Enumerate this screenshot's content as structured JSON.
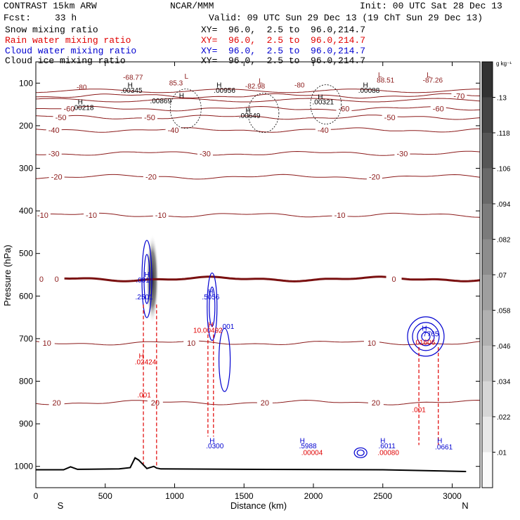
{
  "header": {
    "model": "CONTRAST 15km ARW",
    "org": "NCAR/MMM",
    "init": "Init: 00 UTC Sat 28 Dec 13",
    "fcst_label": "Fcst:",
    "fcst_value": "33 h",
    "valid": "Valid: 09 UTC Sun 29 Dec 13 (19 ChT Sun 29 Dec 13)"
  },
  "fields": [
    {
      "name": "Snow mixing ratio",
      "xy": "XY=  96.0,  2.5 to  96.0,214.7",
      "color": "#000000"
    },
    {
      "name": "Rain water mixing ratio",
      "xy": "XY=  96.0,  2.5 to  96.0,214.7",
      "color": "#e00000"
    },
    {
      "name": "Cloud water mixing ratio",
      "xy": "XY=  96.0,  2.5 to  96.0,214.7",
      "color": "#0000d0"
    },
    {
      "name": "Cloud ice mixing ratio",
      "xy": "XY=  96.0,  2.5 to  96.0,214.7",
      "color": "#000000"
    }
  ],
  "colors": {
    "temperature": "#8b1a1a",
    "zero_isotherm": "#7a1010",
    "rain": "#e00000",
    "cloud_water": "#0000d0",
    "cloud_ice": "#000000",
    "terrain": "#000000"
  },
  "chart_data": {
    "type": "cross-section",
    "xlabel": "Distance (km)",
    "ylabel": "Pressure (hPa)",
    "xlim": [
      0,
      3200
    ],
    "ylim": [
      1050,
      50
    ],
    "xticks": [
      0,
      500,
      1000,
      1500,
      2000,
      2500,
      3000
    ],
    "yticks": [
      100,
      200,
      300,
      400,
      500,
      600,
      700,
      800,
      900,
      1000
    ],
    "end_labels": {
      "left": "S",
      "right": "N"
    },
    "colorbar": {
      "unit": "g kg⁻¹",
      "ticks": [
        ".01",
        ".022",
        ".034",
        ".046",
        ".058",
        ".07",
        ".082",
        ".094",
        ".106",
        ".118",
        ".13"
      ]
    },
    "temperature_isotherms": [
      {
        "label": "-70",
        "p": 130,
        "labels_at": [
          3050
        ]
      },
      {
        "label": "-60",
        "p": 160,
        "labels_at": [
          240,
          2220,
          2900
        ]
      },
      {
        "label": "-50",
        "p": 180,
        "labels_at": [
          180,
          820,
          2550
        ]
      },
      {
        "label": "-40",
        "p": 210,
        "labels_at": [
          130,
          990,
          2070
        ]
      },
      {
        "label": "-30",
        "p": 265,
        "labels_at": [
          130,
          1220,
          2640
        ]
      },
      {
        "label": "-20",
        "p": 320,
        "labels_at": [
          150,
          830,
          2440
        ]
      },
      {
        "label": "-10",
        "p": 410,
        "labels_at": [
          50,
          400,
          900,
          2190
        ]
      },
      {
        "label": "0",
        "p": 560,
        "labels_at": [
          40,
          150,
          2580
        ]
      },
      {
        "label": "10",
        "p": 710,
        "labels_at": [
          80,
          1120,
          2420
        ]
      },
      {
        "label": "20",
        "p": 850,
        "labels_at": [
          150,
          860,
          1650,
          2450
        ]
      }
    ],
    "upper_labels": [
      {
        "text": "-68.77",
        "x": 700,
        "p": 92,
        "color": "temperature"
      },
      {
        "text": "-80",
        "x": 330,
        "p": 115,
        "color": "temperature"
      },
      {
        "text": "L",
        "x": 1085,
        "p": 90,
        "color": "temperature"
      },
      {
        "text": "85.3",
        "x": 1010,
        "p": 105,
        "color": "temperature"
      },
      {
        "text": "L",
        "x": 1620,
        "p": 100,
        "color": "temperature"
      },
      {
        "text": "-82.98",
        "x": 1580,
        "p": 113,
        "color": "temperature"
      },
      {
        "text": "-80",
        "x": 1900,
        "p": 110,
        "color": "temperature"
      },
      {
        "text": "L",
        "x": 2480,
        "p": 86,
        "color": "temperature"
      },
      {
        "text": "88.51",
        "x": 2520,
        "p": 99,
        "color": "temperature"
      },
      {
        "text": "L",
        "x": 2830,
        "p": 86,
        "color": "temperature"
      },
      {
        "text": "-87.26",
        "x": 2860,
        "p": 99,
        "color": "temperature"
      },
      {
        "text": "H",
        "x": 680,
        "p": 110,
        "color": "cloud_ice"
      },
      {
        "text": ".00345",
        "x": 690,
        "p": 123,
        "color": "cloud_ice"
      },
      {
        "text": "H",
        "x": 1050,
        "p": 135,
        "color": "cloud_ice"
      },
      {
        "text": ".00869",
        "x": 900,
        "p": 147,
        "color": "cloud_ice"
      },
      {
        "text": "H",
        "x": 1320,
        "p": 110,
        "color": "cloud_ice"
      },
      {
        "text": ".00956",
        "x": 1360,
        "p": 123,
        "color": "cloud_ice"
      },
      {
        "text": "H",
        "x": 1530,
        "p": 170,
        "color": "cloud_ice"
      },
      {
        "text": ".00649",
        "x": 1540,
        "p": 182,
        "color": "cloud_ice"
      },
      {
        "text": "H",
        "x": 2050,
        "p": 138,
        "color": "cloud_ice"
      },
      {
        "text": ".00321",
        "x": 2070,
        "p": 150,
        "color": "cloud_ice"
      },
      {
        "text": "H",
        "x": 2375,
        "p": 110,
        "color": "cloud_ice"
      },
      {
        "text": ".00088",
        "x": 2400,
        "p": 123,
        "color": "cloud_ice"
      },
      {
        "text": "H",
        "x": 320,
        "p": 150,
        "color": "cloud_ice"
      },
      {
        "text": ".00218",
        "x": 340,
        "p": 163,
        "color": "cloud_ice"
      }
    ],
    "maxima_labels": [
      {
        "text": "H",
        "x": 800,
        "p": 555,
        "color": "cloud_water"
      },
      {
        "text": ".001",
        "x": 770,
        "p": 568,
        "color": "cloud_water"
      },
      {
        "text": ".2501",
        "x": 780,
        "p": 608,
        "color": "cloud_water"
      },
      {
        "text": "H",
        "x": 1260,
        "p": 595,
        "color": "cloud_water"
      },
      {
        "text": ".5056",
        "x": 1260,
        "p": 608,
        "color": "cloud_water"
      },
      {
        "text": ".001",
        "x": 1380,
        "p": 677,
        "color": "cloud_water"
      },
      {
        "text": "H",
        "x": 1260,
        "p": 673,
        "color": "rain"
      },
      {
        "text": "10.00492",
        "x": 1240,
        "p": 686,
        "color": "rain"
      },
      {
        "text": "H",
        "x": 760,
        "p": 746,
        "color": "rain"
      },
      {
        "text": ".02424",
        "x": 790,
        "p": 760,
        "color": "rain"
      },
      {
        "text": ".001",
        "x": 780,
        "p": 838,
        "color": "rain"
      },
      {
        "text": "H",
        "x": 2800,
        "p": 681,
        "color": "cloud_water"
      },
      {
        "text": ".7765",
        "x": 2840,
        "p": 694,
        "color": "cloud_water"
      },
      {
        "text": ".01606",
        "x": 2800,
        "p": 714,
        "color": "rain"
      },
      {
        "text": ".001",
        "x": 2760,
        "p": 873,
        "color": "rain"
      },
      {
        "text": "H",
        "x": 1270,
        "p": 945,
        "color": "cloud_water"
      },
      {
        "text": ".0300",
        "x": 1290,
        "p": 958,
        "color": "cloud_water"
      },
      {
        "text": "H",
        "x": 1920,
        "p": 945,
        "color": "cloud_water"
      },
      {
        "text": ".5988",
        "x": 1960,
        "p": 958,
        "color": "cloud_water"
      },
      {
        "text": ".00004",
        "x": 1990,
        "p": 973,
        "color": "rain"
      },
      {
        "text": "H",
        "x": 2500,
        "p": 945,
        "color": "cloud_water"
      },
      {
        "text": ".6011",
        "x": 2530,
        "p": 958,
        "color": "cloud_water"
      },
      {
        "text": ".00080",
        "x": 2540,
        "p": 973,
        "color": "rain"
      },
      {
        "text": "H",
        "x": 2910,
        "p": 945,
        "color": "cloud_water"
      },
      {
        "text": ".0661",
        "x": 2940,
        "p": 960,
        "color": "cloud_water"
      }
    ],
    "snow_max": {
      "x": 840,
      "p": 560,
      "p_top": 430,
      "p_bottom": 640,
      "value_peak": 0.13
    },
    "terrain": {
      "x": [
        0,
        200,
        250,
        300,
        600,
        680,
        715,
        740,
        800,
        850,
        870,
        900,
        1500,
        2500,
        3100
      ],
      "p": [
        1008,
        1008,
        1001,
        1007,
        1006,
        1003,
        980,
        985,
        1005,
        1000,
        1004,
        1006,
        1007,
        1008,
        1012
      ]
    }
  }
}
